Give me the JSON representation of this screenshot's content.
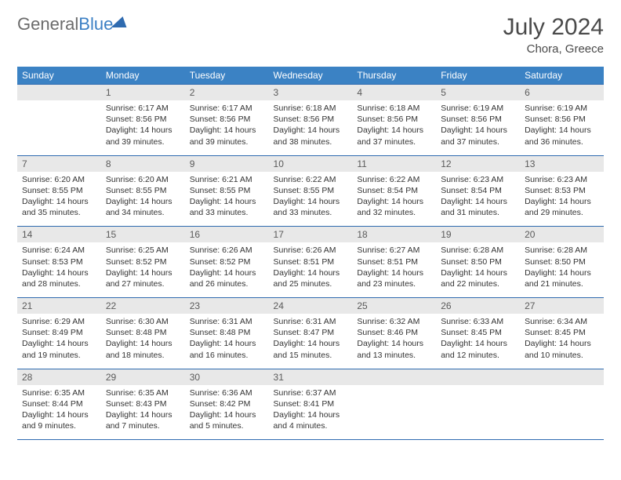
{
  "logo": {
    "word1": "General",
    "word2": "Blue"
  },
  "title": "July 2024",
  "location": "Chora, Greece",
  "colors": {
    "header_bg": "#3b82c4",
    "header_text": "#ffffff",
    "daynum_bg": "#e8e8e8",
    "border": "#2f6bb0",
    "body_text": "#333333",
    "title_text": "#4a4a4a"
  },
  "days": [
    "Sunday",
    "Monday",
    "Tuesday",
    "Wednesday",
    "Thursday",
    "Friday",
    "Saturday"
  ],
  "weeks": [
    {
      "nums": [
        "",
        "1",
        "2",
        "3",
        "4",
        "5",
        "6"
      ],
      "cells": [
        null,
        {
          "sunrise": "6:17 AM",
          "sunset": "8:56 PM",
          "daylight": "14 hours and 39 minutes."
        },
        {
          "sunrise": "6:17 AM",
          "sunset": "8:56 PM",
          "daylight": "14 hours and 39 minutes."
        },
        {
          "sunrise": "6:18 AM",
          "sunset": "8:56 PM",
          "daylight": "14 hours and 38 minutes."
        },
        {
          "sunrise": "6:18 AM",
          "sunset": "8:56 PM",
          "daylight": "14 hours and 37 minutes."
        },
        {
          "sunrise": "6:19 AM",
          "sunset": "8:56 PM",
          "daylight": "14 hours and 37 minutes."
        },
        {
          "sunrise": "6:19 AM",
          "sunset": "8:56 PM",
          "daylight": "14 hours and 36 minutes."
        }
      ]
    },
    {
      "nums": [
        "7",
        "8",
        "9",
        "10",
        "11",
        "12",
        "13"
      ],
      "cells": [
        {
          "sunrise": "6:20 AM",
          "sunset": "8:55 PM",
          "daylight": "14 hours and 35 minutes."
        },
        {
          "sunrise": "6:20 AM",
          "sunset": "8:55 PM",
          "daylight": "14 hours and 34 minutes."
        },
        {
          "sunrise": "6:21 AM",
          "sunset": "8:55 PM",
          "daylight": "14 hours and 33 minutes."
        },
        {
          "sunrise": "6:22 AM",
          "sunset": "8:55 PM",
          "daylight": "14 hours and 33 minutes."
        },
        {
          "sunrise": "6:22 AM",
          "sunset": "8:54 PM",
          "daylight": "14 hours and 32 minutes."
        },
        {
          "sunrise": "6:23 AM",
          "sunset": "8:54 PM",
          "daylight": "14 hours and 31 minutes."
        },
        {
          "sunrise": "6:23 AM",
          "sunset": "8:53 PM",
          "daylight": "14 hours and 29 minutes."
        }
      ]
    },
    {
      "nums": [
        "14",
        "15",
        "16",
        "17",
        "18",
        "19",
        "20"
      ],
      "cells": [
        {
          "sunrise": "6:24 AM",
          "sunset": "8:53 PM",
          "daylight": "14 hours and 28 minutes."
        },
        {
          "sunrise": "6:25 AM",
          "sunset": "8:52 PM",
          "daylight": "14 hours and 27 minutes."
        },
        {
          "sunrise": "6:26 AM",
          "sunset": "8:52 PM",
          "daylight": "14 hours and 26 minutes."
        },
        {
          "sunrise": "6:26 AM",
          "sunset": "8:51 PM",
          "daylight": "14 hours and 25 minutes."
        },
        {
          "sunrise": "6:27 AM",
          "sunset": "8:51 PM",
          "daylight": "14 hours and 23 minutes."
        },
        {
          "sunrise": "6:28 AM",
          "sunset": "8:50 PM",
          "daylight": "14 hours and 22 minutes."
        },
        {
          "sunrise": "6:28 AM",
          "sunset": "8:50 PM",
          "daylight": "14 hours and 21 minutes."
        }
      ]
    },
    {
      "nums": [
        "21",
        "22",
        "23",
        "24",
        "25",
        "26",
        "27"
      ],
      "cells": [
        {
          "sunrise": "6:29 AM",
          "sunset": "8:49 PM",
          "daylight": "14 hours and 19 minutes."
        },
        {
          "sunrise": "6:30 AM",
          "sunset": "8:48 PM",
          "daylight": "14 hours and 18 minutes."
        },
        {
          "sunrise": "6:31 AM",
          "sunset": "8:48 PM",
          "daylight": "14 hours and 16 minutes."
        },
        {
          "sunrise": "6:31 AM",
          "sunset": "8:47 PM",
          "daylight": "14 hours and 15 minutes."
        },
        {
          "sunrise": "6:32 AM",
          "sunset": "8:46 PM",
          "daylight": "14 hours and 13 minutes."
        },
        {
          "sunrise": "6:33 AM",
          "sunset": "8:45 PM",
          "daylight": "14 hours and 12 minutes."
        },
        {
          "sunrise": "6:34 AM",
          "sunset": "8:45 PM",
          "daylight": "14 hours and 10 minutes."
        }
      ]
    },
    {
      "nums": [
        "28",
        "29",
        "30",
        "31",
        "",
        "",
        ""
      ],
      "cells": [
        {
          "sunrise": "6:35 AM",
          "sunset": "8:44 PM",
          "daylight": "14 hours and 9 minutes."
        },
        {
          "sunrise": "6:35 AM",
          "sunset": "8:43 PM",
          "daylight": "14 hours and 7 minutes."
        },
        {
          "sunrise": "6:36 AM",
          "sunset": "8:42 PM",
          "daylight": "14 hours and 5 minutes."
        },
        {
          "sunrise": "6:37 AM",
          "sunset": "8:41 PM",
          "daylight": "14 hours and 4 minutes."
        },
        null,
        null,
        null
      ]
    }
  ],
  "labels": {
    "sunrise": "Sunrise:",
    "sunset": "Sunset:",
    "daylight": "Daylight:"
  }
}
